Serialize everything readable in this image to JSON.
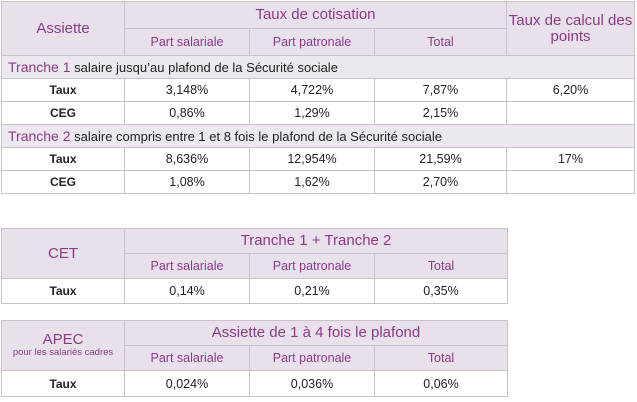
{
  "table1": {
    "assiette_label": "Assiette",
    "cotisation_label": "Taux de cotisation",
    "points_label": "Taux de calcul des points",
    "col_salariale": "Part salariale",
    "col_patronale": "Part patronale",
    "col_total": "Total",
    "tranche1": {
      "name": "Tranche 1",
      "desc": "salaire jusqu’au plafond de la Sécurité sociale",
      "rows": [
        {
          "label": "Taux",
          "salariale": "3,148%",
          "patronale": "4,722%",
          "total": "7,87%",
          "points": "6,20%"
        },
        {
          "label": "CEG",
          "salariale": "0,86%",
          "patronale": "1,29%",
          "total": "2,15%",
          "points": ""
        }
      ]
    },
    "tranche2": {
      "name": "Tranche 2",
      "desc": "salaire compris entre 1 et 8 fois le plafond de la Sécurité sociale",
      "rows": [
        {
          "label": "Taux",
          "salariale": "8,636%",
          "patronale": "12,954%",
          "total": "21,59%",
          "points": "17%"
        },
        {
          "label": "CEG",
          "salariale": "1,08%",
          "patronale": "1,62%",
          "total": "2,70%",
          "points": ""
        }
      ]
    }
  },
  "table2": {
    "label": "CET",
    "title": "Tranche 1 + Tranche 2",
    "col_salariale": "Part salariale",
    "col_patronale": "Part patronale",
    "col_total": "Total",
    "row": {
      "label": "Taux",
      "salariale": "0,14%",
      "patronale": "0,21%",
      "total": "0,35%"
    }
  },
  "table3": {
    "label": "APEC",
    "note": "pour les salariés cadres",
    "title": "Assiette de 1 à 4 fois le plafond",
    "col_salariale": "Part salariale",
    "col_patronale": "Part patronale",
    "col_total": "Total",
    "row": {
      "label": "Taux",
      "salariale": "0,024%",
      "patronale": "0,036%",
      "total": "0,06%"
    }
  }
}
